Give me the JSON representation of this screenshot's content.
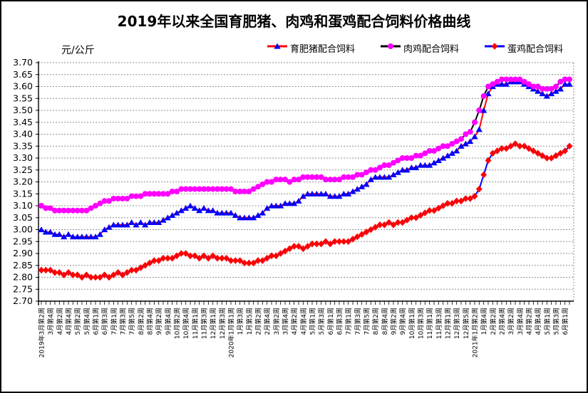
{
  "title": "2019年以来全国育肥猪、肉鸡和蛋鸡配合饲料价格曲线",
  "y_axis_unit": "元/公斤",
  "colors": {
    "pig_line": "#ff0000",
    "pig_marker": "#0000ff",
    "broiler_line": "#000000",
    "broiler_marker": "#ff00ff",
    "layer_line": "#0000ff",
    "layer_marker": "#ff0000",
    "grid": "#909090",
    "axis": "#000000",
    "background": "#ffffff"
  },
  "legend": [
    {
      "key": "pig",
      "label": "育肥猪配合饲料",
      "line_color": "#ff0000",
      "marker": "triangle",
      "marker_color": "#0000ff"
    },
    {
      "key": "broiler",
      "label": "肉鸡配合饲料",
      "line_color": "#000000",
      "marker": "circle",
      "marker_color": "#ff00ff"
    },
    {
      "key": "layer",
      "label": "蛋鸡配合饲料",
      "line_color": "#0000ff",
      "marker": "diamond",
      "marker_color": "#ff0000"
    }
  ],
  "chart_data": {
    "type": "line",
    "title": "2019年以来全国育肥猪、肉鸡和蛋鸡配合饲料价格曲线",
    "ylabel": "元/公斤",
    "ylim": [
      2.7,
      3.7
    ],
    "ytick_step": 0.05,
    "grid": "horizontal dashed",
    "legend_position": "top",
    "points_per_tick_label": 2,
    "y_tick_labels": [
      "3.70",
      "3.65",
      "3.60",
      "3.55",
      "3.50",
      "3.45",
      "3.40",
      "3.35",
      "3.30",
      "3.25",
      "3.20",
      "3.15",
      "3.10",
      "3.05",
      "3.00",
      "2.95",
      "2.90",
      "2.85",
      "2.80",
      "2.75",
      "2.70"
    ],
    "x_tick_labels": [
      "2019年3月第2周",
      "3月第4周",
      "4月第2周",
      "4月第4周",
      "5月第2周",
      "5月第4周",
      "6月第1周",
      "6月第3周",
      "7月第1周",
      "7月第3周",
      "7月第5周",
      "8月第2周",
      "8月第4周",
      "9月第2周",
      "9月第4周",
      "10月第2周",
      "10月第4周",
      "11月第1周",
      "11月第3周",
      "12月第1周",
      "12月第3周",
      "2020年1月第1周",
      "1月第3周",
      "1月第5周",
      "2月第2周",
      "2月第4周",
      "3月第2周",
      "3月第4周",
      "4月第2周",
      "4月第4周",
      "5月第1周",
      "5月第3周",
      "6月第1周",
      "6月第3周",
      "7月第1周",
      "7月第3周",
      "7月第5周",
      "8月第2周",
      "8月第4周",
      "9月第2周",
      "9月第4周",
      "10月第1周",
      "10月第3周",
      "11月第1周",
      "11月第3周",
      "12月第1周",
      "12月第3周",
      "12月第5周",
      "2021年1月第2周",
      "1月第4周",
      "2月第2周",
      "2月第4周",
      "3月第2周",
      "3月第4周",
      "4月第2周",
      "4月第4周",
      "5月第1周",
      "5月第3周",
      "6月第1周"
    ],
    "series": [
      {
        "key": "pig",
        "name": "育肥猪配合饲料",
        "line_color": "#ff0000",
        "marker": "triangle",
        "marker_color": "#0000ff",
        "values": [
          3.0,
          2.99,
          2.99,
          2.98,
          2.98,
          2.97,
          2.98,
          2.97,
          2.97,
          2.97,
          2.97,
          2.97,
          2.97,
          2.98,
          3.0,
          3.01,
          3.02,
          3.02,
          3.02,
          3.02,
          3.03,
          3.02,
          3.03,
          3.02,
          3.03,
          3.03,
          3.03,
          3.04,
          3.05,
          3.06,
          3.07,
          3.08,
          3.09,
          3.1,
          3.09,
          3.08,
          3.09,
          3.08,
          3.08,
          3.07,
          3.07,
          3.07,
          3.07,
          3.06,
          3.05,
          3.05,
          3.05,
          3.05,
          3.06,
          3.07,
          3.09,
          3.1,
          3.1,
          3.1,
          3.11,
          3.11,
          3.11,
          3.12,
          3.14,
          3.15,
          3.15,
          3.15,
          3.15,
          3.15,
          3.14,
          3.14,
          3.14,
          3.15,
          3.15,
          3.16,
          3.17,
          3.18,
          3.19,
          3.21,
          3.22,
          3.22,
          3.22,
          3.22,
          3.23,
          3.24,
          3.25,
          3.25,
          3.26,
          3.26,
          3.27,
          3.27,
          3.27,
          3.28,
          3.29,
          3.3,
          3.31,
          3.32,
          3.33,
          3.35,
          3.36,
          3.37,
          3.39,
          3.42,
          3.5,
          3.57,
          3.6,
          3.61,
          3.61,
          3.61,
          3.62,
          3.62,
          3.62,
          3.61,
          3.6,
          3.59,
          3.58,
          3.57,
          3.56,
          3.57,
          3.58,
          3.59,
          3.61,
          3.61
        ]
      },
      {
        "key": "broiler",
        "name": "肉鸡配合饲料",
        "line_color": "#000000",
        "marker": "circle",
        "marker_color": "#ff00ff",
        "values": [
          3.1,
          3.09,
          3.09,
          3.08,
          3.08,
          3.08,
          3.08,
          3.08,
          3.08,
          3.08,
          3.08,
          3.09,
          3.1,
          3.11,
          3.12,
          3.12,
          3.13,
          3.13,
          3.13,
          3.13,
          3.14,
          3.14,
          3.14,
          3.15,
          3.15,
          3.15,
          3.15,
          3.15,
          3.15,
          3.16,
          3.16,
          3.17,
          3.17,
          3.17,
          3.17,
          3.17,
          3.17,
          3.17,
          3.17,
          3.17,
          3.17,
          3.17,
          3.17,
          3.16,
          3.16,
          3.16,
          3.16,
          3.17,
          3.18,
          3.19,
          3.2,
          3.2,
          3.21,
          3.21,
          3.21,
          3.2,
          3.21,
          3.21,
          3.22,
          3.22,
          3.22,
          3.22,
          3.22,
          3.21,
          3.21,
          3.21,
          3.21,
          3.22,
          3.22,
          3.22,
          3.23,
          3.23,
          3.24,
          3.25,
          3.25,
          3.26,
          3.27,
          3.27,
          3.28,
          3.29,
          3.3,
          3.3,
          3.3,
          3.31,
          3.31,
          3.32,
          3.33,
          3.33,
          3.34,
          3.35,
          3.35,
          3.36,
          3.37,
          3.38,
          3.4,
          3.41,
          3.45,
          3.5,
          3.56,
          3.6,
          3.61,
          3.62,
          3.63,
          3.63,
          3.63,
          3.63,
          3.63,
          3.62,
          3.61,
          3.6,
          3.6,
          3.59,
          3.59,
          3.59,
          3.6,
          3.62,
          3.63,
          3.63
        ]
      },
      {
        "key": "layer",
        "name": "蛋鸡配合饲料",
        "line_color": "#0000ff",
        "marker": "diamond",
        "marker_color": "#ff0000",
        "values": [
          2.83,
          2.83,
          2.83,
          2.82,
          2.82,
          2.81,
          2.82,
          2.81,
          2.81,
          2.8,
          2.81,
          2.8,
          2.8,
          2.8,
          2.81,
          2.8,
          2.81,
          2.82,
          2.81,
          2.82,
          2.83,
          2.83,
          2.84,
          2.85,
          2.86,
          2.87,
          2.87,
          2.88,
          2.88,
          2.88,
          2.89,
          2.9,
          2.9,
          2.89,
          2.89,
          2.88,
          2.89,
          2.88,
          2.89,
          2.88,
          2.88,
          2.88,
          2.87,
          2.87,
          2.87,
          2.86,
          2.86,
          2.86,
          2.87,
          2.87,
          2.88,
          2.89,
          2.89,
          2.9,
          2.91,
          2.92,
          2.93,
          2.93,
          2.92,
          2.93,
          2.94,
          2.94,
          2.94,
          2.95,
          2.94,
          2.95,
          2.95,
          2.95,
          2.95,
          2.96,
          2.97,
          2.98,
          2.99,
          3.0,
          3.01,
          3.02,
          3.02,
          3.03,
          3.02,
          3.03,
          3.03,
          3.04,
          3.05,
          3.05,
          3.06,
          3.07,
          3.08,
          3.08,
          3.09,
          3.1,
          3.11,
          3.11,
          3.12,
          3.12,
          3.13,
          3.13,
          3.14,
          3.17,
          3.23,
          3.29,
          3.32,
          3.33,
          3.34,
          3.34,
          3.35,
          3.36,
          3.35,
          3.35,
          3.34,
          3.33,
          3.32,
          3.31,
          3.3,
          3.3,
          3.31,
          3.32,
          3.33,
          3.35
        ]
      }
    ]
  }
}
